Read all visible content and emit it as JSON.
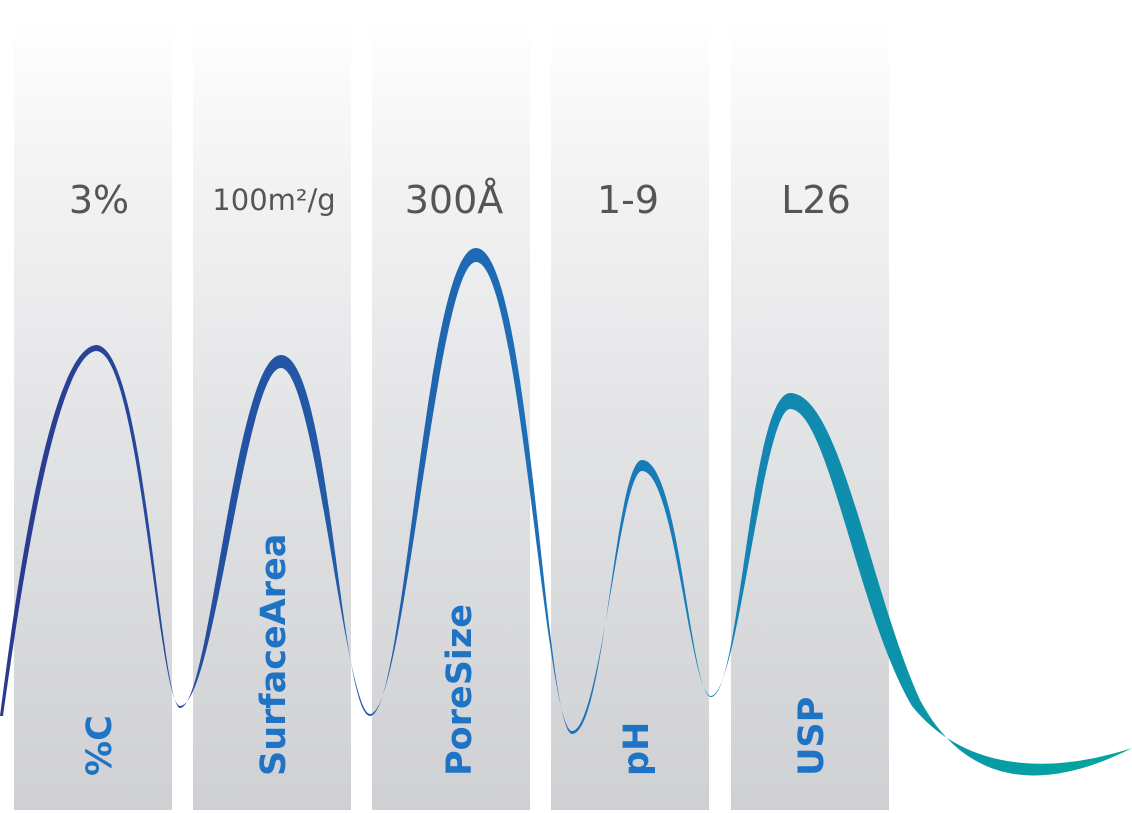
{
  "columns": [
    {
      "value": "3%",
      "parameter": "%C"
    },
    {
      "value": "100m²/g",
      "parameter": "SurfaceArea"
    },
    {
      "value": "300Å",
      "parameter": "PoreSize"
    },
    {
      "value": "1-9",
      "parameter": "pH"
    },
    {
      "value": "L26",
      "parameter": "USP"
    }
  ],
  "colors": {
    "wave_start": "#2b3990",
    "wave_mid": "#1c75bc",
    "wave_end": "#00a99d",
    "value_text": "#555555",
    "parameter_text": "#1f73c4"
  }
}
